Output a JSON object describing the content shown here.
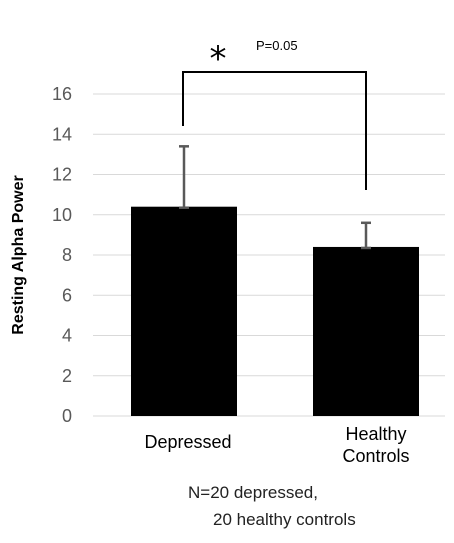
{
  "chart_data": {
    "type": "bar",
    "categories": [
      "Depressed",
      "Healthy\nControls"
    ],
    "values": [
      10.4,
      8.4
    ],
    "error_upper": [
      13.4,
      9.6
    ],
    "ylabel": "Resting Alpha Power",
    "ylim": [
      0,
      16
    ],
    "yticks": [
      0,
      2,
      4,
      6,
      8,
      10,
      12,
      14,
      16
    ],
    "grid": true,
    "bar_color": "#000000",
    "errorbar_color": "#595959",
    "gridline_color": "#d9d9d9",
    "significance": {
      "marker": "*",
      "label": "P=0.05"
    }
  },
  "footnote": {
    "line1": "N=20 depressed,",
    "line2": "20 healthy controls"
  }
}
